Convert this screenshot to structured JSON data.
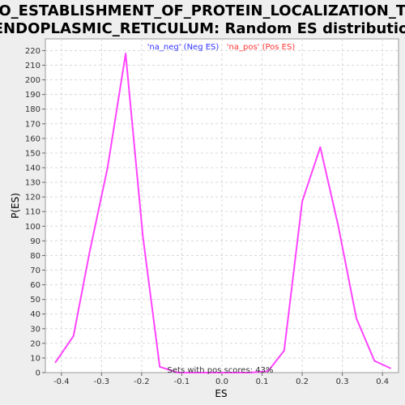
{
  "chart_data": {
    "type": "line",
    "title_line1": "GO_ESTABLISHMENT_OF_PROTEIN_LOCALIZATION_TO",
    "title_line2": "_ENDOPLASMIC_RETICULUM: Random ES distribution",
    "xlabel": "ES",
    "ylabel": "P(ES)",
    "xlim": [
      -0.44,
      0.44
    ],
    "ylim": [
      0,
      228
    ],
    "x_ticks": [
      -0.4,
      -0.3,
      -0.2,
      -0.1,
      0.0,
      0.1,
      0.2,
      0.3,
      0.4
    ],
    "x_tick_labels": [
      "-0.4",
      "-0.3",
      "-0.2",
      "-0.1",
      "0.0",
      "0.1",
      "0.2",
      "0.3",
      "0.4"
    ],
    "y_ticks": [
      0,
      10,
      20,
      30,
      40,
      50,
      60,
      70,
      80,
      90,
      100,
      110,
      120,
      130,
      140,
      150,
      160,
      170,
      180,
      190,
      200,
      210,
      220
    ],
    "grid": true,
    "legend": {
      "placement": "top-center",
      "entries": [
        {
          "label": "'na_neg' (Neg ES)",
          "color": "#3333ff"
        },
        {
          "label": "'na_pos' (Pos ES)",
          "color": "#ff3333"
        }
      ]
    },
    "series": [
      {
        "color": "#ff44ff",
        "x": [
          -0.415,
          -0.37,
          -0.33,
          -0.285,
          -0.24,
          -0.197,
          -0.155,
          -0.11,
          -0.07,
          0.0,
          0.07,
          0.115,
          0.155,
          0.2,
          0.245,
          0.29,
          0.335,
          0.38,
          0.42
        ],
        "y": [
          7,
          25,
          82,
          140,
          218,
          93,
          4,
          0,
          0,
          0,
          0,
          1,
          15,
          117,
          154,
          100,
          37,
          8,
          3
        ]
      }
    ],
    "annotation": "Sets with pos scores: 43%"
  }
}
